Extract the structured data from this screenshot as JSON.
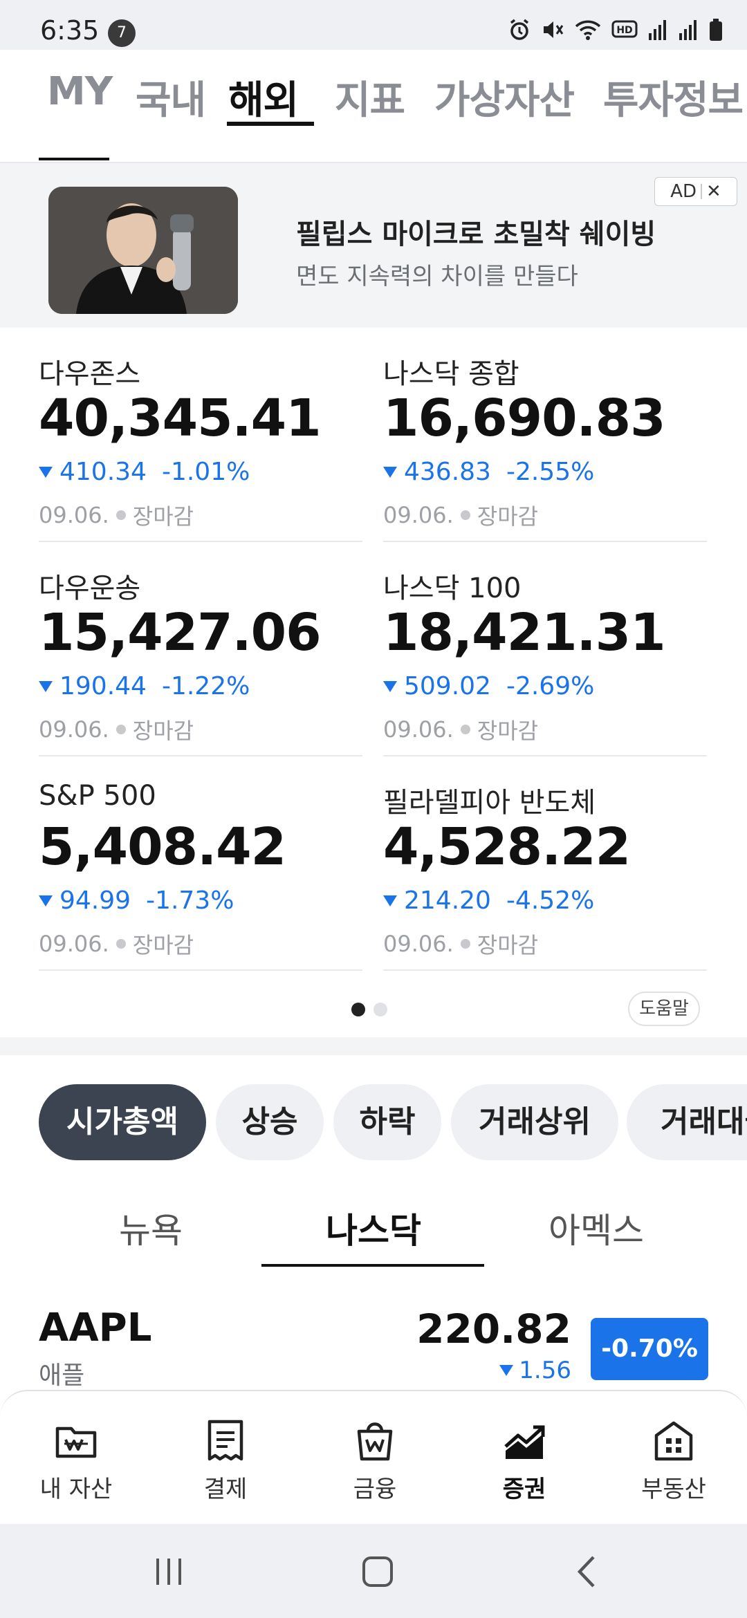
{
  "status_bar": {
    "time": "6:35",
    "notification_count": "7"
  },
  "top_nav": {
    "tabs": [
      {
        "label": "MY",
        "active": false
      },
      {
        "label": "국내",
        "active": false
      },
      {
        "label": "해외",
        "active": true
      },
      {
        "label": "지표",
        "active": false
      },
      {
        "label": "가상자산",
        "active": false
      },
      {
        "label": "투자정보",
        "active": false
      }
    ]
  },
  "ad": {
    "title": "필립스 마이크로 초밀착 쉐이빙",
    "subtitle": "면도 지속력의 차이를 만들다",
    "badge_label": "AD",
    "close_symbol": "✕"
  },
  "indices": [
    {
      "name": "다우존스",
      "value": "40,345.41",
      "change": "410.34",
      "percent": "-1.01%",
      "date": "09.06.",
      "status": "장마감"
    },
    {
      "name": "나스닥 종합",
      "value": "16,690.83",
      "change": "436.83",
      "percent": "-2.55%",
      "date": "09.06.",
      "status": "장마감"
    },
    {
      "name": "다우운송",
      "value": "15,427.06",
      "change": "190.44",
      "percent": "-1.22%",
      "date": "09.06.",
      "status": "장마감"
    },
    {
      "name": "나스닥 100",
      "value": "18,421.31",
      "change": "509.02",
      "percent": "-2.69%",
      "date": "09.06.",
      "status": "장마감"
    },
    {
      "name": "S&P 500",
      "value": "5,408.42",
      "change": "94.99",
      "percent": "-1.73%",
      "date": "09.06.",
      "status": "장마감"
    },
    {
      "name": "필라델피아 반도체",
      "value": "4,528.22",
      "change": "214.20",
      "percent": "-4.52%",
      "date": "09.06.",
      "status": "장마감"
    }
  ],
  "help_label": "도움말",
  "filter_chips": [
    {
      "label": "시가총액",
      "active": true
    },
    {
      "label": "상승",
      "active": false
    },
    {
      "label": "하락",
      "active": false
    },
    {
      "label": "거래상위",
      "active": false
    },
    {
      "label": "거래대금",
      "active": false
    }
  ],
  "market_tabs": [
    {
      "label": "뉴욕",
      "active": false
    },
    {
      "label": "나스닥",
      "active": true
    },
    {
      "label": "아멕스",
      "active": false
    }
  ],
  "stock": {
    "ticker": "AAPL",
    "name": "애플",
    "price": "220.82",
    "change": "1.56",
    "percent": "-0.70%"
  },
  "bottom_nav": [
    {
      "label": "내 자산",
      "icon": "wallet-icon",
      "active": false
    },
    {
      "label": "결제",
      "icon": "receipt-icon",
      "active": false
    },
    {
      "label": "금융",
      "icon": "shopping-bag-won-icon",
      "active": false
    },
    {
      "label": "증권",
      "icon": "stock-chart-icon",
      "active": true
    },
    {
      "label": "부동산",
      "icon": "building-icon",
      "active": false
    }
  ],
  "colors": {
    "down_blue": "#1a73e8",
    "active_chip": "#3b4450"
  }
}
